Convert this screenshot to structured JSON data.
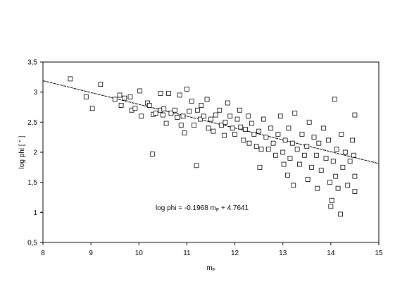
{
  "chart_data": {
    "type": "scatter",
    "title": "",
    "xlabel": "m",
    "xlabel_sub": "F",
    "ylabel": "log phi  [ \" ]",
    "xlim": [
      8,
      15
    ],
    "ylim": [
      0.5,
      3.5
    ],
    "x_ticks": [
      8,
      9,
      10,
      11,
      12,
      13,
      14,
      15
    ],
    "x_tick_labels": [
      "8",
      "9",
      "10",
      "11",
      "12",
      "13",
      "14",
      "15"
    ],
    "y_ticks": [
      0.5,
      1,
      1.5,
      2,
      2.5,
      3,
      3.5
    ],
    "y_tick_labels": [
      "0,5",
      "1",
      "1,5",
      "2",
      "2,5",
      "3",
      "3,5"
    ],
    "grid": false,
    "marker": "open-square",
    "fit_line": {
      "slope": -0.1968,
      "intercept": 4.7641
    },
    "annotation": {
      "prefix": "log phi = -0.1968 m",
      "sub": "F",
      "suffix": " + 4.7641"
    },
    "points": [
      [
        8.57,
        3.22
      ],
      [
        8.9,
        2.92
      ],
      [
        9.03,
        2.73
      ],
      [
        9.2,
        3.13
      ],
      [
        9.5,
        2.88
      ],
      [
        9.6,
        2.95
      ],
      [
        9.63,
        2.78
      ],
      [
        9.7,
        2.9
      ],
      [
        9.82,
        2.92
      ],
      [
        9.85,
        2.7
      ],
      [
        9.92,
        2.73
      ],
      [
        10.02,
        3.02
      ],
      [
        10.05,
        2.6
      ],
      [
        10.18,
        2.82
      ],
      [
        10.22,
        2.78
      ],
      [
        10.28,
        1.97
      ],
      [
        10.3,
        2.63
      ],
      [
        10.35,
        2.65
      ],
      [
        10.45,
        2.7
      ],
      [
        10.45,
        2.98
      ],
      [
        10.5,
        2.62
      ],
      [
        10.52,
        2.72
      ],
      [
        10.57,
        2.48
      ],
      [
        10.62,
        2.98
      ],
      [
        10.67,
        2.65
      ],
      [
        10.75,
        2.7
      ],
      [
        10.8,
        2.58
      ],
      [
        10.85,
        2.95
      ],
      [
        10.88,
        2.45
      ],
      [
        10.92,
        2.6
      ],
      [
        10.95,
        2.32
      ],
      [
        11.0,
        3.05
      ],
      [
        11.05,
        2.68
      ],
      [
        11.1,
        2.85
      ],
      [
        11.15,
        2.45
      ],
      [
        11.2,
        1.78
      ],
      [
        11.22,
        2.7
      ],
      [
        11.28,
        2.55
      ],
      [
        11.3,
        2.78
      ],
      [
        11.35,
        2.6
      ],
      [
        11.42,
        2.88
      ],
      [
        11.45,
        2.4
      ],
      [
        11.5,
        2.55
      ],
      [
        11.55,
        2.35
      ],
      [
        11.6,
        2.62
      ],
      [
        11.68,
        2.7
      ],
      [
        11.72,
        2.45
      ],
      [
        11.78,
        2.28
      ],
      [
        11.8,
        2.5
      ],
      [
        11.85,
        2.82
      ],
      [
        11.9,
        2.6
      ],
      [
        11.95,
        2.4
      ],
      [
        12.0,
        2.3
      ],
      [
        12.05,
        2.55
      ],
      [
        12.1,
        2.7
      ],
      [
        12.12,
        2.42
      ],
      [
        12.18,
        2.2
      ],
      [
        12.22,
        2.38
      ],
      [
        12.28,
        2.6
      ],
      [
        12.3,
        2.15
      ],
      [
        12.35,
        2.48
      ],
      [
        12.4,
        2.3
      ],
      [
        12.45,
        2.1
      ],
      [
        12.5,
        2.35
      ],
      [
        12.52,
        1.75
      ],
      [
        12.55,
        2.05
      ],
      [
        12.6,
        2.55
      ],
      [
        12.65,
        2.25
      ],
      [
        12.7,
        2.05
      ],
      [
        12.75,
        2.4
      ],
      [
        12.8,
        2.15
      ],
      [
        12.85,
        1.95
      ],
      [
        12.9,
        2.3
      ],
      [
        12.95,
        2.6
      ],
      [
        13.0,
        2.0
      ],
      [
        13.02,
        1.8
      ],
      [
        13.05,
        2.2
      ],
      [
        13.1,
        1.62
      ],
      [
        13.12,
        2.4
      ],
      [
        13.15,
        1.9
      ],
      [
        13.2,
        2.15
      ],
      [
        13.22,
        1.45
      ],
      [
        13.25,
        2.65
      ],
      [
        13.3,
        2.05
      ],
      [
        13.35,
        1.8
      ],
      [
        13.4,
        2.3
      ],
      [
        13.45,
        1.95
      ],
      [
        13.5,
        2.1
      ],
      [
        13.52,
        1.55
      ],
      [
        13.55,
        2.5
      ],
      [
        13.6,
        1.75
      ],
      [
        13.65,
        2.25
      ],
      [
        13.7,
        1.95
      ],
      [
        13.72,
        1.4
      ],
      [
        13.75,
        2.15
      ],
      [
        13.8,
        1.7
      ],
      [
        13.85,
        2.4
      ],
      [
        13.9,
        1.9
      ],
      [
        13.95,
        2.2
      ],
      [
        13.98,
        1.5
      ],
      [
        14.0,
        1.1
      ],
      [
        14.02,
        1.2
      ],
      [
        14.05,
        1.85
      ],
      [
        14.08,
        2.88
      ],
      [
        14.1,
        1.6
      ],
      [
        14.12,
        2.05
      ],
      [
        14.15,
        1.4
      ],
      [
        14.2,
        0.97
      ],
      [
        14.22,
        2.3
      ],
      [
        14.25,
        1.75
      ],
      [
        14.3,
        2.0
      ],
      [
        14.35,
        1.45
      ],
      [
        14.4,
        1.85
      ],
      [
        14.45,
        2.2
      ],
      [
        14.5,
        1.6
      ],
      [
        14.5,
        2.62
      ],
      [
        14.5,
        1.35
      ],
      [
        14.48,
        1.95
      ]
    ]
  }
}
